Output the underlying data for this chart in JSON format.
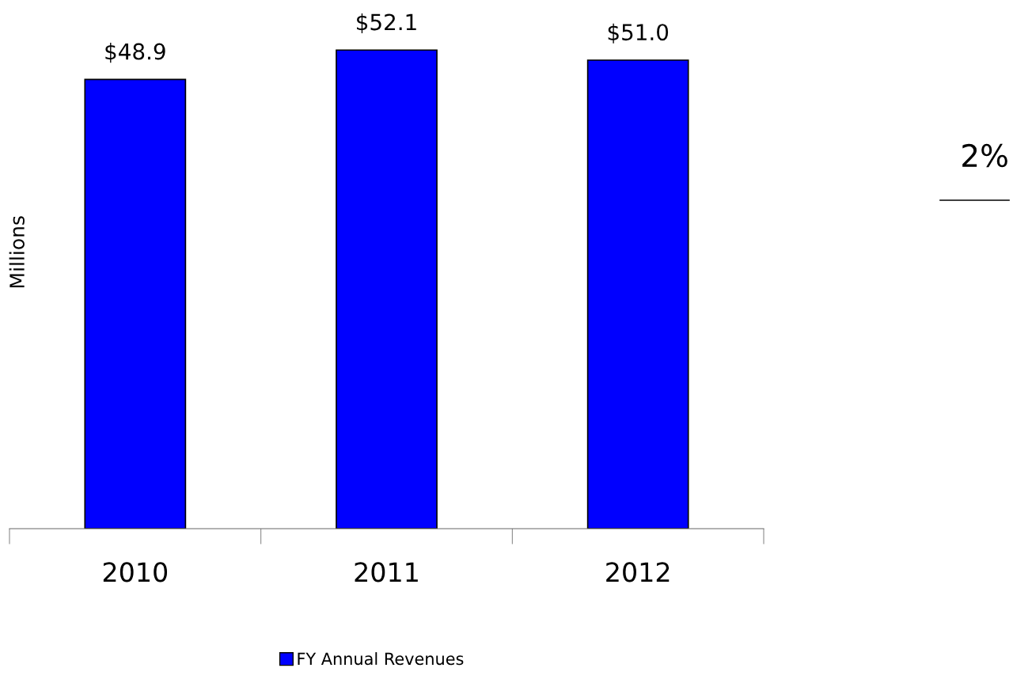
{
  "chart_data": {
    "type": "bar",
    "categories": [
      "2010",
      "2011",
      "2012"
    ],
    "series": [
      {
        "name": "FY Annual Revenues",
        "color": "#0000ff",
        "values": [
          48.9,
          52.1,
          51.0
        ],
        "value_labels": [
          "$48.9",
          "$52.1",
          "$51.0"
        ]
      }
    ],
    "ylabel": "Millions",
    "grid": false,
    "legend": "bottom",
    "annotations": [
      "2%"
    ]
  }
}
